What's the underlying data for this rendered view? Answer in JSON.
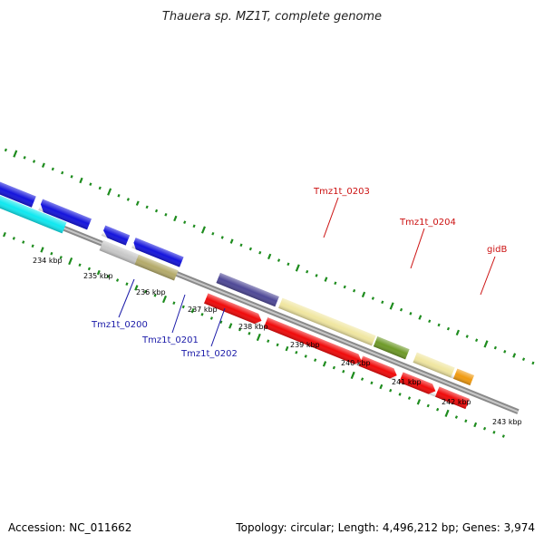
{
  "title": "Thauera sp. MZ1T, complete genome",
  "footer": {
    "accession": "Accession: NC_011662",
    "summary": "Topology: circular; Length: 4,496,212 bp; Genes: 3,974"
  },
  "ticks": [
    "234 kbp",
    "235 kbp",
    "236 kbp",
    "237 kbp",
    "238 kbp",
    "239 kbp",
    "240 kbp",
    "241 kbp",
    "242 kbp",
    "243 kbp"
  ],
  "gene_labels": {
    "g0200": "Tmz1t_0200",
    "g0201": "Tmz1t_0201",
    "g0202": "Tmz1t_0202",
    "g0203": "Tmz1t_0203",
    "g0204": "Tmz1t_0204",
    "gidB": "gidB"
  },
  "colors": {
    "blue": "#1414dc",
    "cyan": "#10e8f0",
    "red": "#f00a0a",
    "purple": "#4e4896",
    "khaki": "#f0e6a0",
    "olive": "#6e9a28",
    "tan": "#b4aa6a",
    "gray": "#c8c8c8",
    "orange": "#f09a10",
    "gc": "#1e8c1e"
  }
}
